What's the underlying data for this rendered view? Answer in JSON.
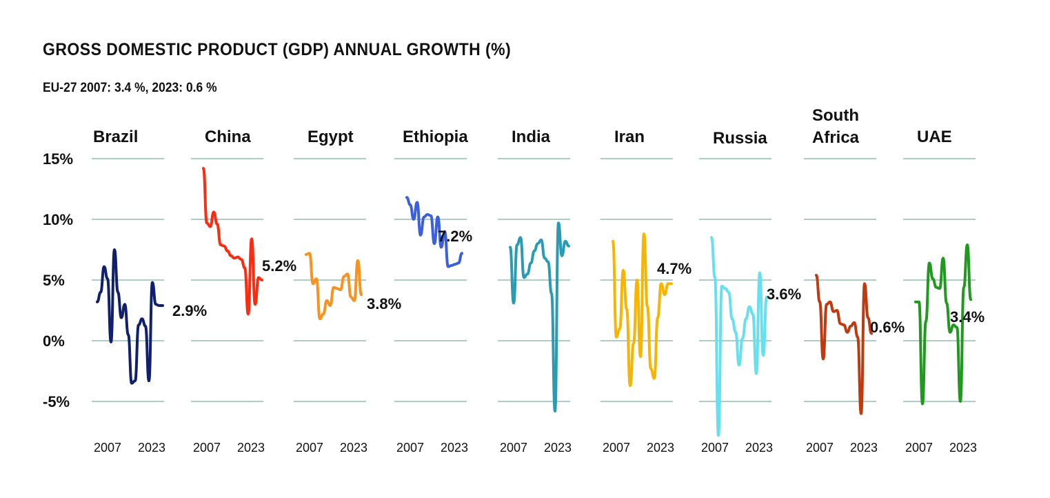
{
  "title": "GROSS DOMESTIC PRODUCT (GDP) ANNUAL GROWTH (%)",
  "subtitle": "EU-27 2007: 3.4 %, 2023: 0.6 %",
  "chart_data": {
    "type": "line",
    "title": "GROSS DOMESTIC PRODUCT (GDP) ANNUAL GROWTH (%)",
    "subtitle": "EU-27 2007: 3.4 %, 2023: 0.6 %",
    "ylim": [
      -8,
      15
    ],
    "y_ticks": [
      {
        "value": 15,
        "label": "15%"
      },
      {
        "value": 10,
        "label": "10%"
      },
      {
        "value": 5,
        "label": "5%"
      },
      {
        "value": 0,
        "label": "0%"
      },
      {
        "value": -5,
        "label": "-5%"
      }
    ],
    "x_tick_labels": [
      "2007",
      "2023"
    ],
    "grid": true,
    "series": [
      {
        "name": "Brazil",
        "color": "#10206e",
        "end_label": "2.9%",
        "x": [
          2005,
          2006,
          2007,
          2008,
          2009,
          2010,
          2011,
          2012,
          2013,
          2014,
          2015,
          2016,
          2017,
          2018,
          2019,
          2020,
          2021,
          2022,
          2023,
          2024
        ],
        "values": [
          3.2,
          4.0,
          6.1,
          5.1,
          -0.1,
          7.5,
          4.0,
          1.9,
          3.0,
          0.5,
          -3.5,
          -3.3,
          1.3,
          1.8,
          1.2,
          -3.3,
          4.8,
          3.0,
          2.9,
          2.9
        ]
      },
      {
        "name": "China",
        "color": "#ff2a10",
        "end_label": "5.2%",
        "x": [
          2007,
          2008,
          2009,
          2010,
          2011,
          2012,
          2013,
          2014,
          2015,
          2016,
          2017,
          2018,
          2019,
          2020,
          2021,
          2022,
          2023,
          2024
        ],
        "values": [
          14.2,
          9.7,
          9.4,
          10.6,
          9.6,
          7.9,
          7.8,
          7.4,
          7.0,
          6.8,
          6.9,
          6.7,
          6.0,
          2.2,
          8.4,
          3.0,
          5.2,
          5.0
        ]
      },
      {
        "name": "Egypt",
        "color": "#f7931e",
        "end_label": "3.8%",
        "x": [
          2007,
          2008,
          2009,
          2010,
          2011,
          2012,
          2013,
          2014,
          2015,
          2016,
          2017,
          2018,
          2019,
          2020,
          2021,
          2022,
          2023
        ],
        "values": [
          7.1,
          7.2,
          4.7,
          5.1,
          1.8,
          2.2,
          3.3,
          2.9,
          4.4,
          4.3,
          4.2,
          5.3,
          5.5,
          3.6,
          3.3,
          6.6,
          3.8
        ]
      },
      {
        "name": "Ethiopia",
        "color": "#3a5fe0",
        "end_label": "7.2%",
        "x": [
          2007,
          2008,
          2009,
          2010,
          2011,
          2012,
          2013,
          2014,
          2015,
          2016,
          2017,
          2018,
          2019,
          2020,
          2021,
          2022,
          2023
        ],
        "values": [
          11.8,
          11.2,
          10.0,
          11.4,
          8.7,
          10.2,
          10.4,
          10.3,
          8.0,
          10.2,
          7.7,
          9.0,
          6.1,
          6.2,
          6.3,
          6.4,
          7.2
        ]
      },
      {
        "name": "India",
        "color": "#2a9bb5",
        "end_label": "",
        "x": [
          2007,
          2008,
          2009,
          2010,
          2011,
          2012,
          2013,
          2014,
          2015,
          2016,
          2017,
          2018,
          2019,
          2020,
          2021,
          2022,
          2023,
          2024
        ],
        "values": [
          7.7,
          3.1,
          7.9,
          8.5,
          5.2,
          5.5,
          6.4,
          7.4,
          8.0,
          8.3,
          6.8,
          6.5,
          3.9,
          -5.8,
          9.7,
          7.0,
          8.2,
          7.8
        ]
      },
      {
        "name": "Iran",
        "color": "#f7b500",
        "end_label": "4.7%",
        "x": [
          2007,
          2008,
          2009,
          2010,
          2011,
          2012,
          2013,
          2014,
          2015,
          2016,
          2017,
          2018,
          2019,
          2020,
          2021,
          2022,
          2023,
          2024
        ],
        "values": [
          8.2,
          0.3,
          1.0,
          5.8,
          2.6,
          -3.7,
          -0.2,
          5.0,
          -1.3,
          8.8,
          2.8,
          -2.3,
          -3.1,
          1.9,
          4.7,
          3.8,
          4.7,
          4.7
        ]
      },
      {
        "name": "Russia",
        "color": "#66e0f0",
        "end_label": "3.6%",
        "x": [
          2007,
          2008,
          2009,
          2010,
          2011,
          2012,
          2013,
          2014,
          2015,
          2016,
          2017,
          2018,
          2019,
          2020,
          2021,
          2022,
          2023
        ],
        "values": [
          8.5,
          5.2,
          -7.8,
          4.5,
          4.3,
          4.0,
          1.8,
          0.7,
          -2.0,
          0.2,
          1.8,
          2.8,
          2.2,
          -2.7,
          5.6,
          -1.2,
          3.6
        ]
      },
      {
        "name": "South Africa",
        "color": "#c03a10",
        "end_label": "0.6%",
        "x": [
          2007,
          2008,
          2009,
          2010,
          2011,
          2012,
          2013,
          2014,
          2015,
          2016,
          2017,
          2018,
          2019,
          2020,
          2021,
          2022,
          2023
        ],
        "values": [
          5.4,
          3.2,
          -1.5,
          3.0,
          3.2,
          2.4,
          2.5,
          1.4,
          1.3,
          0.7,
          1.2,
          1.5,
          0.3,
          -6.0,
          4.7,
          1.9,
          0.6
        ]
      },
      {
        "name": "UAE",
        "color": "#1f9a1f",
        "end_label": "3.4%",
        "x": [
          2007,
          2008,
          2009,
          2010,
          2011,
          2012,
          2013,
          2014,
          2015,
          2016,
          2017,
          2018,
          2019,
          2020,
          2021,
          2022,
          2023
        ],
        "values": [
          3.2,
          3.2,
          -5.2,
          1.6,
          6.4,
          5.1,
          4.4,
          4.3,
          6.8,
          3.1,
          0.7,
          1.3,
          1.1,
          -5.0,
          4.4,
          7.9,
          3.4
        ]
      }
    ]
  }
}
